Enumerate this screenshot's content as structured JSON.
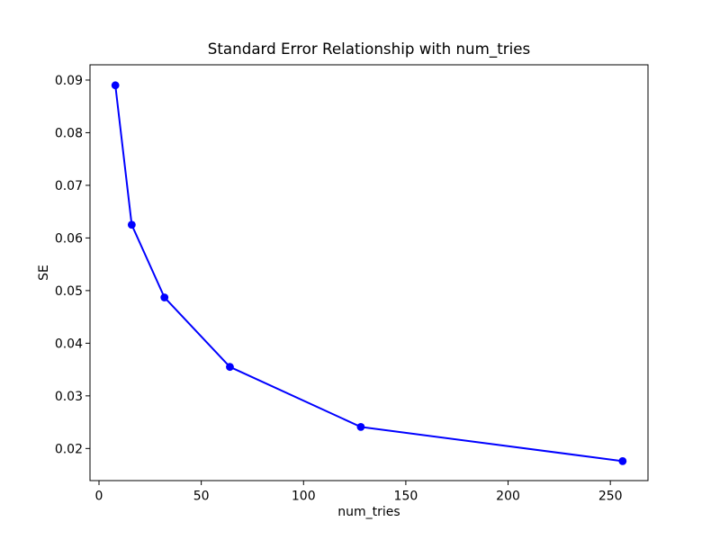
{
  "chart_data": {
    "type": "line",
    "title": "Standard Error Relationship with num_tries",
    "xlabel": "num_tries",
    "ylabel": "SE",
    "x": [
      8,
      16,
      32,
      64,
      128,
      256
    ],
    "y": [
      0.089,
      0.0625,
      0.0487,
      0.0355,
      0.0241,
      0.0176
    ],
    "xlim": [
      -4.4,
      268.4
    ],
    "ylim": [
      0.0139,
      0.0929
    ],
    "xticks": [
      0,
      50,
      100,
      150,
      200,
      250
    ],
    "xtick_labels": [
      "0",
      "50",
      "100",
      "150",
      "200",
      "250"
    ],
    "yticks": [
      0.02,
      0.03,
      0.04,
      0.05,
      0.06,
      0.07,
      0.08,
      0.09
    ],
    "ytick_labels": [
      "0.02",
      "0.03",
      "0.04",
      "0.05",
      "0.06",
      "0.07",
      "0.08",
      "0.09"
    ],
    "grid": false,
    "legend": null,
    "colors": {
      "line": "#0000ff",
      "marker": "#0000ff",
      "text": "#000000",
      "spine": "#000000",
      "background": "#ffffff"
    },
    "marker": "o",
    "marker_radius": 4.4,
    "line_width": 2
  }
}
